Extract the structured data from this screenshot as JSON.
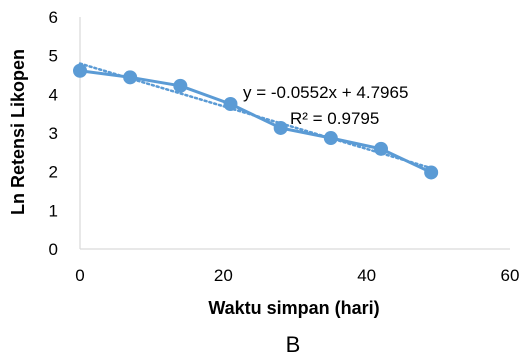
{
  "chart_data": {
    "type": "scatter",
    "title": "",
    "xlabel": "Waktu simpan (hari)",
    "ylabel": "Ln Retensi Likopen",
    "xlim": [
      0,
      60
    ],
    "ylim": [
      0,
      6
    ],
    "xticks": [
      "0",
      "20",
      "40",
      "60"
    ],
    "yticks": [
      "0",
      "1",
      "2",
      "3",
      "4",
      "5",
      "6"
    ],
    "grid": false,
    "series": [
      {
        "x": [
          0,
          7,
          14,
          21,
          28,
          35,
          42,
          49
        ],
        "y": [
          4.61,
          4.44,
          4.22,
          3.75,
          3.13,
          2.87,
          2.59,
          1.98
        ],
        "color": "#5b9bd5",
        "style": "line-markers"
      }
    ],
    "trendline": {
      "type": "linear",
      "slope": -0.0552,
      "intercept": 4.7965,
      "x_range": [
        0,
        49
      ],
      "color": "#5b9bd5",
      "style": "dotted",
      "equation_label": "y = -0.0552x + 4.7965",
      "r2_label": "R² = 0.9795"
    },
    "panel_label": "B"
  }
}
